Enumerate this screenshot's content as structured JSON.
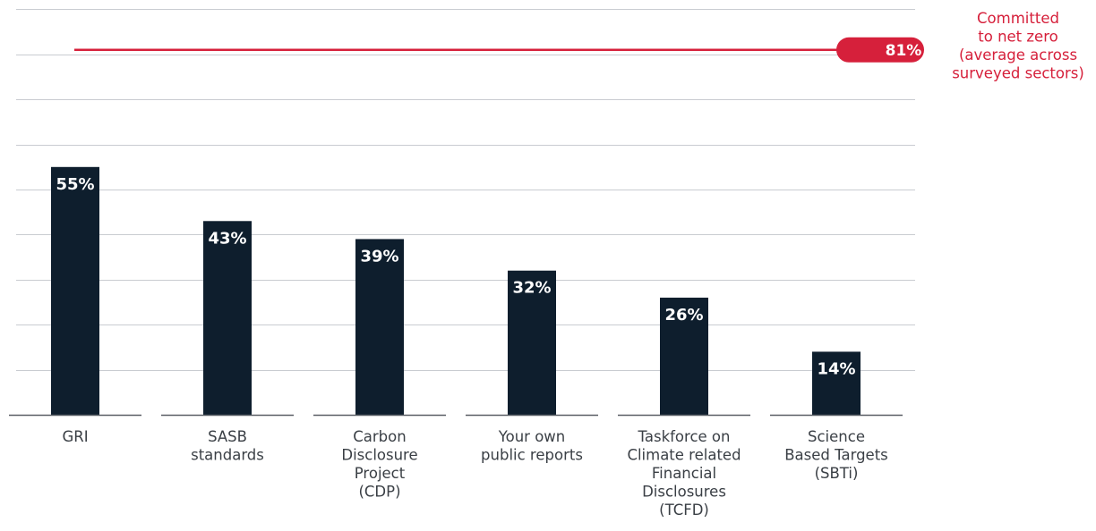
{
  "chart_data": {
    "type": "bar",
    "categories": [
      [
        "GRI"
      ],
      [
        "SASB",
        "standards"
      ],
      [
        "Carbon",
        "Disclosure",
        "Project",
        "(CDP)"
      ],
      [
        "Your own",
        "public reports"
      ],
      [
        "Taskforce on",
        "Climate related",
        "Financial",
        "Disclosures",
        "(TCFD)"
      ],
      [
        "Science",
        "Based Targets",
        "(SBTi)"
      ]
    ],
    "values": [
      55,
      43,
      39,
      32,
      26,
      14
    ],
    "value_labels": [
      "55%",
      "43%",
      "39%",
      "32%",
      "26%",
      "14%"
    ],
    "ylim": [
      0,
      91
    ],
    "gridlines": [
      0,
      10,
      20,
      30,
      40,
      50,
      60,
      70,
      80,
      90
    ],
    "reference_line": {
      "value": 81,
      "label": "81%",
      "caption": [
        "Committed",
        "to net zero",
        "(average across",
        "surveyed sectors)"
      ]
    },
    "colors": {
      "bar": "#0e1e2d",
      "reference": "#d6203b",
      "grid": "#c9ccd1"
    }
  }
}
